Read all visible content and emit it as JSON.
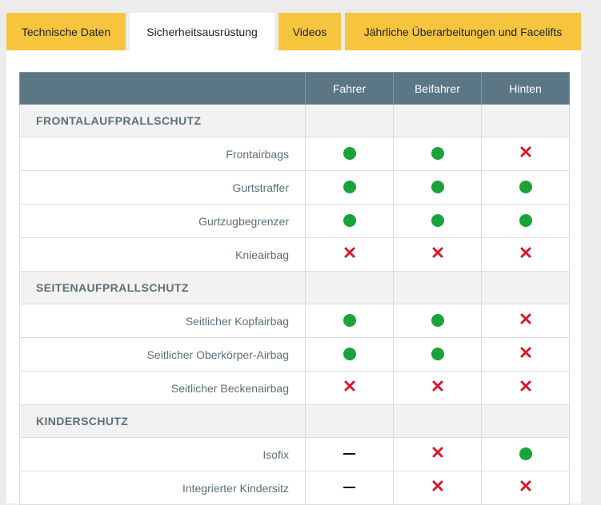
{
  "tabs": [
    {
      "label": "Technische Daten",
      "active": false
    },
    {
      "label": "Sicherheitsausrüstung",
      "active": true
    },
    {
      "label": "Videos",
      "active": false
    },
    {
      "label": "Jährliche Überarbeitungen und Facelifts",
      "active": false
    }
  ],
  "table": {
    "columns": [
      "Fahrer",
      "Beifahrer",
      "Hinten"
    ],
    "sections": [
      {
        "title": "FRONTALAUFPRALLSCHUTZ",
        "rows": [
          {
            "label": "Frontairbags",
            "values": [
              "yes",
              "yes",
              "no"
            ]
          },
          {
            "label": "Gurtstraffer",
            "values": [
              "yes",
              "yes",
              "yes"
            ]
          },
          {
            "label": "Gurtzugbegrenzer",
            "values": [
              "yes",
              "yes",
              "yes"
            ]
          },
          {
            "label": "Knieairbag",
            "values": [
              "no",
              "no",
              "no"
            ]
          }
        ]
      },
      {
        "title": "SEITENAUFPRALLSCHUTZ",
        "rows": [
          {
            "label": "Seitlicher Kopfairbag",
            "values": [
              "yes",
              "yes",
              "no"
            ]
          },
          {
            "label": "Seitlicher Oberkörper-Airbag",
            "values": [
              "yes",
              "yes",
              "no"
            ]
          },
          {
            "label": "Seitlicher Beckenairbag",
            "values": [
              "no",
              "no",
              "no"
            ]
          }
        ]
      },
      {
        "title": "KINDERSCHUTZ",
        "rows": [
          {
            "label": "Isofix",
            "values": [
              "na",
              "no",
              "yes"
            ]
          },
          {
            "label": "Integrierter Kindersitz",
            "values": [
              "na",
              "no",
              "no"
            ]
          }
        ]
      }
    ]
  },
  "colors": {
    "tab_accent": "#f6c53d",
    "header_bg": "#5b7685",
    "yes": "#19a33a",
    "no": "#d7182a",
    "na": "#111111"
  },
  "icons": {
    "yes": "check-dot-icon",
    "no": "cross-icon",
    "na": "dash-icon"
  }
}
